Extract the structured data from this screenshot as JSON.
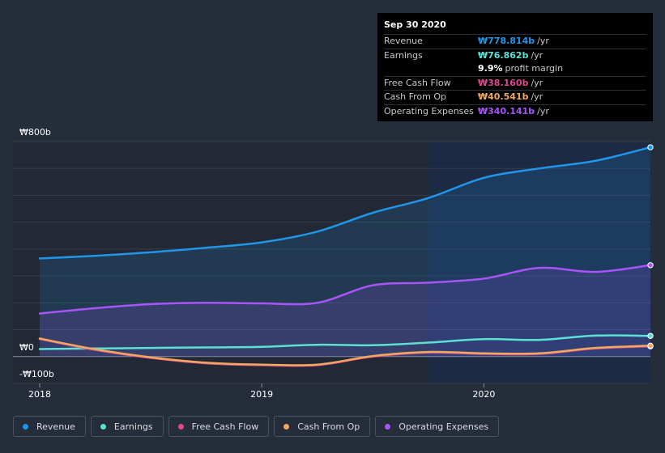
{
  "chart_data": {
    "type": "area",
    "currency_symbol": "₩",
    "y_tick_labels": [
      "₩800b",
      "₩0",
      "-₩100b"
    ],
    "y_ticks": [
      800,
      0,
      -100
    ],
    "ylim": [
      -100,
      800
    ],
    "x_tick_labels": [
      "2018",
      "2019",
      "2020"
    ],
    "x_ticks": [
      2018.0,
      2019.0,
      2020.0
    ],
    "xlim": [
      2018.0,
      2020.75
    ],
    "highlight_start": 2019.75,
    "grid": true,
    "legend_placement": "bottom-left",
    "series": [
      {
        "key": "revenue",
        "name": "Revenue",
        "color": "#2196e9",
        "fill": true,
        "x": [
          2018.0,
          2018.25,
          2018.5,
          2018.75,
          2019.0,
          2019.25,
          2019.5,
          2019.75,
          2020.0,
          2020.25,
          2020.5,
          2020.75
        ],
        "y": [
          365,
          375,
          388,
          405,
          425,
          465,
          535,
          590,
          665,
          700,
          728,
          778.814
        ]
      },
      {
        "key": "operating_expenses",
        "name": "Operating Expenses",
        "color": "#a855f7",
        "fill": true,
        "x": [
          2018.0,
          2018.25,
          2018.5,
          2018.75,
          2019.0,
          2019.25,
          2019.5,
          2019.75,
          2020.0,
          2020.25,
          2020.5,
          2020.75
        ],
        "y": [
          160,
          180,
          195,
          200,
          198,
          200,
          265,
          275,
          290,
          330,
          315,
          340.141
        ]
      },
      {
        "key": "earnings",
        "name": "Earnings",
        "color": "#5ee0d4",
        "fill": false,
        "x": [
          2018.0,
          2018.25,
          2018.5,
          2018.75,
          2019.0,
          2019.25,
          2019.5,
          2019.75,
          2020.0,
          2020.25,
          2020.5,
          2020.75
        ],
        "y": [
          28,
          30,
          32,
          34,
          36,
          44,
          42,
          52,
          65,
          62,
          78,
          76.862
        ]
      },
      {
        "key": "free_cash_flow",
        "name": "Free Cash Flow",
        "color": "#e0488f",
        "fill": false,
        "x": [
          2018.0,
          2018.25,
          2018.5,
          2018.75,
          2019.0,
          2019.25,
          2019.5,
          2019.75,
          2020.0,
          2020.25,
          2020.5,
          2020.75
        ],
        "y": [
          65,
          25,
          -5,
          -25,
          -32,
          -32,
          0,
          15,
          10,
          10,
          30,
          38.16
        ]
      },
      {
        "key": "cash_from_op",
        "name": "Cash From Op",
        "color": "#f0a860",
        "fill": false,
        "x": [
          2018.0,
          2018.25,
          2018.5,
          2018.75,
          2019.0,
          2019.25,
          2019.5,
          2019.75,
          2020.0,
          2020.25,
          2020.5,
          2020.75
        ],
        "y": [
          67,
          27,
          -3,
          -23,
          -30,
          -30,
          2,
          17,
          12,
          12,
          32,
          40.541
        ]
      }
    ]
  },
  "tooltip": {
    "date": "Sep 30 2020",
    "rows": [
      {
        "label": "Revenue",
        "value": "₩778.814b",
        "unit": "/yr",
        "color": "#2196e9"
      },
      {
        "label": "Earnings",
        "value": "₩76.862b",
        "unit": "/yr",
        "color": "#5ee0d4"
      },
      {
        "label": "",
        "value": "9.9%",
        "unit": "profit margin",
        "color": "#ffffff"
      },
      {
        "label": "Free Cash Flow",
        "value": "₩38.160b",
        "unit": "/yr",
        "color": "#e0488f"
      },
      {
        "label": "Cash From Op",
        "value": "₩40.541b",
        "unit": "/yr",
        "color": "#f0a860"
      },
      {
        "label": "Operating Expenses",
        "value": "₩340.141b",
        "unit": "/yr",
        "color": "#a855f7"
      }
    ]
  },
  "legend": [
    {
      "label": "Revenue",
      "color": "#2196e9"
    },
    {
      "label": "Earnings",
      "color": "#5ee0d4"
    },
    {
      "label": "Free Cash Flow",
      "color": "#e0488f"
    },
    {
      "label": "Cash From Op",
      "color": "#f0a860"
    },
    {
      "label": "Operating Expenses",
      "color": "#a855f7"
    }
  ]
}
